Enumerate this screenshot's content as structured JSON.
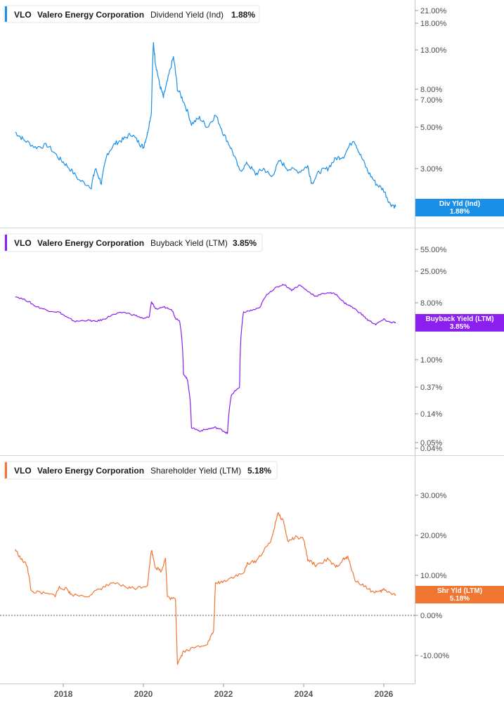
{
  "chart_data": [
    {
      "type": "line",
      "ticker": "VLO",
      "company": "Valero Energy Corporation",
      "metric": "Dividend Yield (Ind)",
      "current_value": "1.88%",
      "tag_label": "Div Yld (Ind)",
      "tag_value": "1.88%",
      "color": "#1a8fe8",
      "scale": "log",
      "y_ticks": [
        "21.00%",
        "18.00%",
        "13.00%",
        "8.00%",
        "7.00%",
        "5.00%",
        "3.00%"
      ],
      "y_tick_values": [
        21,
        18,
        13,
        8,
        7,
        5,
        3
      ],
      "ylim": [
        1.7,
        24
      ],
      "points": [
        [
          2016.8,
          4.7
        ],
        [
          2017.0,
          4.3
        ],
        [
          2017.3,
          3.9
        ],
        [
          2017.6,
          4.0
        ],
        [
          2017.9,
          3.4
        ],
        [
          2018.1,
          3.1
        ],
        [
          2018.4,
          2.6
        ],
        [
          2018.7,
          2.4
        ],
        [
          2018.8,
          3.0
        ],
        [
          2018.95,
          2.5
        ],
        [
          2019.1,
          3.6
        ],
        [
          2019.3,
          4.1
        ],
        [
          2019.5,
          4.3
        ],
        [
          2019.7,
          4.6
        ],
        [
          2019.9,
          4.1
        ],
        [
          2020.0,
          3.9
        ],
        [
          2020.1,
          4.6
        ],
        [
          2020.2,
          6.0
        ],
        [
          2020.25,
          14.0
        ],
        [
          2020.3,
          11.0
        ],
        [
          2020.4,
          8.5
        ],
        [
          2020.5,
          7.2
        ],
        [
          2020.6,
          8.8
        ],
        [
          2020.75,
          11.8
        ],
        [
          2020.85,
          8.0
        ],
        [
          2021.0,
          6.9
        ],
        [
          2021.2,
          5.2
        ],
        [
          2021.4,
          5.6
        ],
        [
          2021.6,
          5.0
        ],
        [
          2021.8,
          5.8
        ],
        [
          2022.0,
          4.6
        ],
        [
          2022.2,
          3.8
        ],
        [
          2022.4,
          2.9
        ],
        [
          2022.6,
          3.2
        ],
        [
          2022.8,
          2.8
        ],
        [
          2023.0,
          3.0
        ],
        [
          2023.2,
          2.7
        ],
        [
          2023.4,
          3.3
        ],
        [
          2023.6,
          3.0
        ],
        [
          2023.9,
          2.9
        ],
        [
          2024.1,
          3.1
        ],
        [
          2024.2,
          2.5
        ],
        [
          2024.4,
          2.9
        ],
        [
          2024.6,
          3.0
        ],
        [
          2024.8,
          3.4
        ],
        [
          2025.0,
          3.5
        ],
        [
          2025.25,
          4.3
        ],
        [
          2025.4,
          3.6
        ],
        [
          2025.6,
          2.9
        ],
        [
          2025.8,
          2.5
        ],
        [
          2026.0,
          2.3
        ],
        [
          2026.15,
          1.95
        ],
        [
          2026.3,
          1.88
        ]
      ]
    },
    {
      "type": "line",
      "ticker": "VLO",
      "company": "Valero Energy Corporation",
      "metric": "Buyback Yield (LTM)",
      "current_value": "3.85%",
      "tag_label": "Buyback Yield (LTM)",
      "tag_value": "3.85%",
      "color": "#8a1ff0",
      "scale": "log",
      "y_ticks": [
        "55.00%",
        "25.00%",
        "8.00%",
        "1.00%",
        "0.37%",
        "0.14%",
        "0.05%",
        "0.04%"
      ],
      "y_tick_values": [
        55,
        25,
        8,
        1,
        0.37,
        0.14,
        0.05,
        0.04
      ],
      "ylim": [
        0.035,
        100
      ],
      "points": [
        [
          2016.8,
          10.0
        ],
        [
          2017.1,
          8.5
        ],
        [
          2017.3,
          7.0
        ],
        [
          2017.6,
          6.0
        ],
        [
          2017.9,
          5.6
        ],
        [
          2018.1,
          4.6
        ],
        [
          2018.3,
          4.0
        ],
        [
          2018.6,
          4.2
        ],
        [
          2018.8,
          4.0
        ],
        [
          2019.0,
          4.3
        ],
        [
          2019.2,
          5.0
        ],
        [
          2019.5,
          5.6
        ],
        [
          2019.8,
          5.0
        ],
        [
          2020.0,
          4.4
        ],
        [
          2020.15,
          4.8
        ],
        [
          2020.2,
          8.2
        ],
        [
          2020.3,
          6.2
        ],
        [
          2020.5,
          6.8
        ],
        [
          2020.7,
          6.3
        ],
        [
          2020.8,
          4.5
        ],
        [
          2020.9,
          4.2
        ],
        [
          2021.0,
          0.6
        ],
        [
          2021.1,
          0.48
        ],
        [
          2021.2,
          0.085
        ],
        [
          2021.4,
          0.075
        ],
        [
          2021.6,
          0.08
        ],
        [
          2021.8,
          0.085
        ],
        [
          2022.0,
          0.075
        ],
        [
          2022.1,
          0.068
        ],
        [
          2022.2,
          0.28
        ],
        [
          2022.4,
          0.37
        ],
        [
          2022.5,
          5.6
        ],
        [
          2022.7,
          6.0
        ],
        [
          2022.9,
          6.5
        ],
        [
          2023.1,
          11.0
        ],
        [
          2023.3,
          13.5
        ],
        [
          2023.5,
          15.5
        ],
        [
          2023.7,
          12.5
        ],
        [
          2023.9,
          15.0
        ],
        [
          2024.1,
          12.0
        ],
        [
          2024.3,
          10.0
        ],
        [
          2024.6,
          11.5
        ],
        [
          2024.8,
          10.8
        ],
        [
          2025.0,
          8.0
        ],
        [
          2025.2,
          6.8
        ],
        [
          2025.4,
          5.5
        ],
        [
          2025.6,
          4.2
        ],
        [
          2025.8,
          3.6
        ],
        [
          2026.0,
          4.3
        ],
        [
          2026.15,
          3.9
        ],
        [
          2026.3,
          3.85
        ]
      ]
    },
    {
      "type": "line",
      "ticker": "VLO",
      "company": "Valero Energy Corporation",
      "metric": "Shareholder Yield (LTM)",
      "current_value": "5.18%",
      "tag_label": "Shr Yld (LTM)",
      "tag_value": "5.18%",
      "color": "#f07632",
      "scale": "linear",
      "y_ticks": [
        "30.00%",
        "20.00%",
        "10.00%",
        "0.00%",
        "-10.00%"
      ],
      "y_tick_values": [
        30,
        20,
        10,
        0,
        -10
      ],
      "ylim": [
        -14,
        38
      ],
      "zero_line": 0,
      "points": [
        [
          2016.8,
          16.5
        ],
        [
          2016.95,
          14.0
        ],
        [
          2017.1,
          12.5
        ],
        [
          2017.2,
          6.0
        ],
        [
          2017.5,
          5.5
        ],
        [
          2017.8,
          5.0
        ],
        [
          2017.9,
          7.0
        ],
        [
          2018.1,
          6.5
        ],
        [
          2018.2,
          5.2
        ],
        [
          2018.6,
          4.8
        ],
        [
          2018.9,
          6.5
        ],
        [
          2019.1,
          7.5
        ],
        [
          2019.3,
          8.0
        ],
        [
          2019.6,
          7.0
        ],
        [
          2019.8,
          6.8
        ],
        [
          2020.1,
          7.5
        ],
        [
          2020.2,
          16.5
        ],
        [
          2020.3,
          12.0
        ],
        [
          2020.45,
          11.0
        ],
        [
          2020.55,
          14.5
        ],
        [
          2020.6,
          4.5
        ],
        [
          2020.8,
          4.0
        ],
        [
          2020.85,
          -12.0
        ],
        [
          2021.0,
          -9.0
        ],
        [
          2021.3,
          -8.0
        ],
        [
          2021.6,
          -7.0
        ],
        [
          2021.75,
          -4.0
        ],
        [
          2021.8,
          8.0
        ],
        [
          2022.0,
          8.5
        ],
        [
          2022.2,
          9.5
        ],
        [
          2022.5,
          10.5
        ],
        [
          2022.6,
          13.0
        ],
        [
          2022.8,
          13.5
        ],
        [
          2023.0,
          16.0
        ],
        [
          2023.2,
          19.0
        ],
        [
          2023.35,
          25.5
        ],
        [
          2023.5,
          23.5
        ],
        [
          2023.6,
          18.5
        ],
        [
          2023.8,
          19.5
        ],
        [
          2024.0,
          19.0
        ],
        [
          2024.1,
          14.0
        ],
        [
          2024.3,
          12.5
        ],
        [
          2024.6,
          14.0
        ],
        [
          2024.8,
          12.0
        ],
        [
          2025.0,
          14.0
        ],
        [
          2025.1,
          14.5
        ],
        [
          2025.3,
          8.5
        ],
        [
          2025.5,
          7.5
        ],
        [
          2025.7,
          6.0
        ],
        [
          2025.9,
          5.8
        ],
        [
          2026.0,
          6.5
        ],
        [
          2026.2,
          5.5
        ],
        [
          2026.3,
          5.18
        ]
      ]
    }
  ],
  "x_axis": {
    "ticks": [
      "2018",
      "2020",
      "2022",
      "2024",
      "2026"
    ],
    "tick_values": [
      2018,
      2020,
      2022,
      2024,
      2026
    ],
    "xlim": [
      2016.75,
      2026.75
    ]
  }
}
